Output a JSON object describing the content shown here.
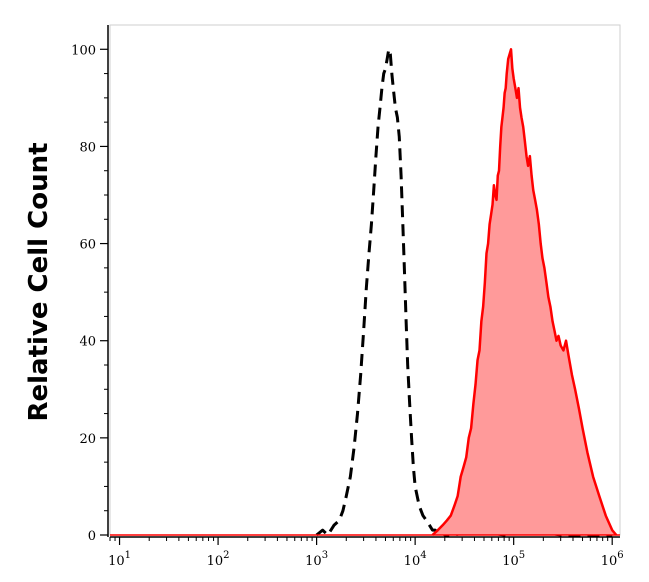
{
  "chart_data": {
    "type": "area",
    "xscale": "log",
    "xlim": [
      8,
      1200000
    ],
    "ylim": [
      0,
      105
    ],
    "ylabel": "Relative Cell Count",
    "xlabel": "",
    "grid": false,
    "legend": "none",
    "yticks": [
      0,
      20,
      40,
      60,
      80,
      100
    ],
    "ytick_labels": [
      "0",
      "20",
      "40",
      "60",
      "80",
      "100"
    ],
    "xticks": [
      {
        "value": 10,
        "base": "10",
        "exp": "1"
      },
      {
        "value": 100,
        "base": "10",
        "exp": "2"
      },
      {
        "value": 1000,
        "base": "10",
        "exp": "3"
      },
      {
        "value": 10000,
        "base": "10",
        "exp": "4"
      },
      {
        "value": 100000,
        "base": "10",
        "exp": "5"
      },
      {
        "value": 1000000,
        "base": "10",
        "exp": "6"
      }
    ],
    "series": [
      {
        "style": "dashed",
        "color": "#000000",
        "fill": "none",
        "x": [
          1000,
          1150,
          1300,
          1500,
          1700,
          1850,
          2000,
          2200,
          2400,
          2600,
          2800,
          3000,
          3200,
          3400,
          3600,
          3800,
          4000,
          4200,
          4400,
          4600,
          4800,
          5000,
          5200,
          5400,
          5600,
          5800,
          6000,
          6300,
          6600,
          6900,
          7200,
          7500,
          7800,
          8100,
          8400,
          8800,
          9200,
          9600,
          10000,
          11000,
          12000,
          13000,
          14000,
          15000,
          16000,
          17000,
          18000,
          20000,
          25000,
          40000,
          80000,
          150000,
          300000,
          600000,
          1000000
        ],
        "y": [
          0,
          1,
          0,
          2,
          3,
          5,
          8,
          12,
          18,
          25,
          33,
          42,
          51,
          58,
          64,
          71,
          78,
          84,
          88,
          92,
          95,
          96,
          98,
          100,
          99,
          95,
          92,
          88,
          86,
          82,
          74,
          64,
          54,
          44,
          35,
          27,
          20,
          14,
          10,
          6,
          4,
          3,
          2,
          1,
          1,
          0,
          1,
          0,
          0,
          1,
          0,
          1,
          0,
          0,
          0
        ]
      },
      {
        "style": "solid-filled",
        "color": "#ff0000",
        "fill": "#ff9a9a",
        "x": [
          15000,
          17000,
          19000,
          21000,
          23000,
          25000,
          27000,
          29000,
          31000,
          33000,
          35000,
          37000,
          39000,
          41000,
          43000,
          45000,
          47000,
          49000,
          51000,
          53000,
          55000,
          57000,
          59000,
          61000,
          63000,
          65000,
          67000,
          69000,
          71000,
          73000,
          75000,
          77000,
          79000,
          81000,
          83000,
          85000,
          88000,
          91000,
          94000,
          97000,
          100000,
          104000,
          108000,
          112000,
          116000,
          120000,
          125000,
          130000,
          135000,
          140000,
          146000,
          152000,
          158000,
          165000,
          172000,
          180000,
          188000,
          196000,
          205000,
          215000,
          225000,
          236000,
          248000,
          260000,
          272000,
          285000,
          300000,
          320000,
          340000,
          360000,
          390000,
          420000,
          460000,
          500000,
          560000,
          640000,
          740000,
          860000,
          1000000,
          1100000
        ],
        "y": [
          0,
          1,
          2,
          3,
          4,
          6,
          8,
          12,
          14,
          16,
          20,
          22,
          27,
          31,
          36,
          38,
          44,
          47,
          52,
          58,
          60,
          64,
          66,
          68,
          72,
          70,
          69,
          74,
          75,
          80,
          84,
          86,
          88,
          91,
          92,
          95,
          98,
          99,
          100,
          96,
          94,
          92,
          90,
          92,
          88,
          86,
          84,
          81,
          78,
          76,
          78,
          74,
          71,
          69,
          67,
          64,
          60,
          57,
          55,
          52,
          49,
          47,
          44,
          42,
          40,
          41,
          39,
          38,
          40,
          37,
          33,
          30,
          26,
          22,
          17,
          12,
          8,
          4,
          1,
          0
        ]
      }
    ]
  }
}
